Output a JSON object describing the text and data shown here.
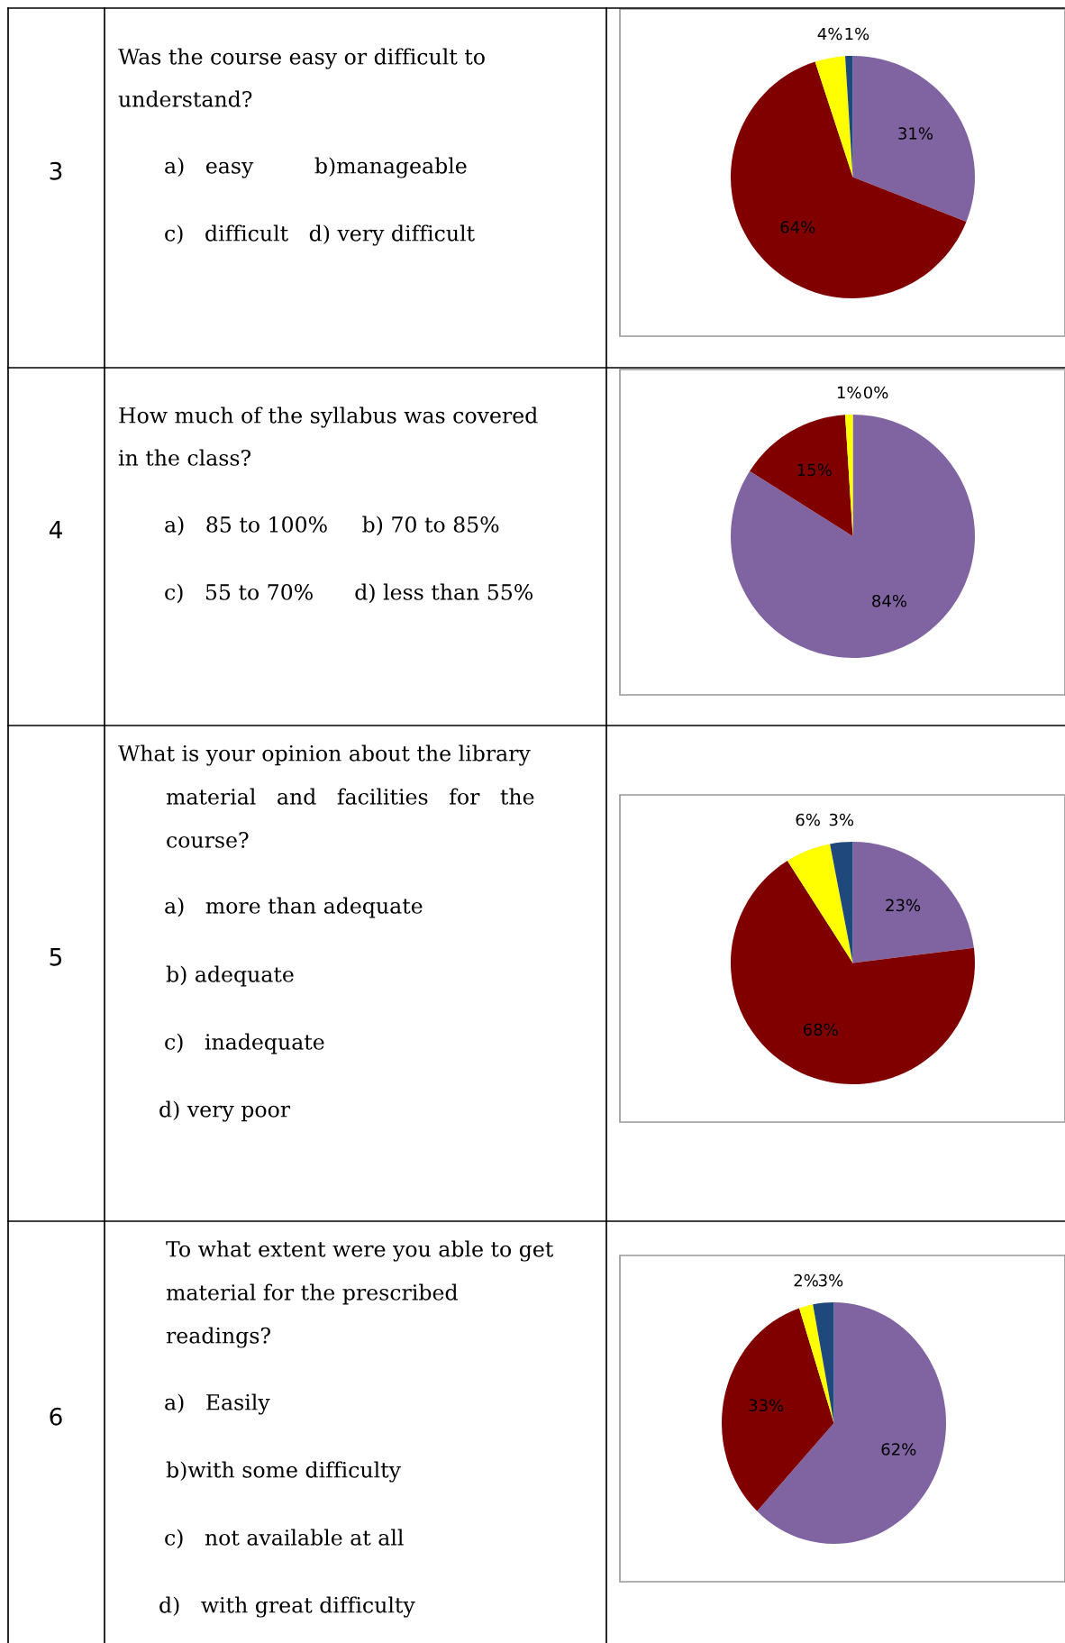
{
  "chart_data": [
    {
      "type": "other",
      "title": "3",
      "annotations": [
        "Was the course easy or difficult to",
        "understand?",
        "a)   easy         b)manageable",
        "c)   difficult   d) very difficult"
      ]
    },
    {
      "type": "pie",
      "categories": [
        null,
        null,
        null,
        null
      ],
      "values": [
        31,
        64,
        4,
        1
      ],
      "colors": [
        "#8064a2",
        "#800000",
        "#ffff00",
        "#1f497d"
      ],
      "value_labels": [
        "31%",
        "64%",
        "4%",
        "1%"
      ]
    },
    {
      "type": "other",
      "title": "4",
      "annotations": [
        "How much of the syllabus was covered",
        "in the class?",
        "a)   85 to 100%     b) 70 to 85%",
        "c)   55 to 70%      d) less than 55%"
      ]
    },
    {
      "type": "pie",
      "categories": [
        null,
        null,
        null,
        null
      ],
      "values": [
        84,
        15,
        1,
        0
      ],
      "colors": [
        "#8064a2",
        "#800000",
        "#ffff00",
        "#1f497d"
      ],
      "value_labels": [
        "84%",
        "15%",
        "1%",
        "0%"
      ]
    },
    {
      "type": "other",
      "title": "5",
      "annotations": [
        "What is your opinion about the library",
        "material   and   facilities   for   the",
        "course?",
        "a)   more than adequate",
        "b) adequate",
        "c)   inadequate",
        "d) very poor"
      ]
    },
    {
      "type": "pie",
      "categories": [
        null,
        null,
        null,
        null
      ],
      "values": [
        23,
        68,
        6,
        3
      ],
      "colors": [
        "#8064a2",
        "#800000",
        "#ffff00",
        "#1f497d"
      ],
      "value_labels": [
        "23%",
        "68%",
        "6%",
        "3%"
      ]
    },
    {
      "type": "other",
      "title": "6",
      "annotations": [
        "To what extent were you able to get",
        "material for the prescribed",
        "readings?",
        "a)   Easily",
        "b)with some difficulty",
        "c)   not available at all",
        "d)   with great difficulty"
      ]
    },
    {
      "type": "pie",
      "categories": [
        null,
        null,
        null,
        null
      ],
      "values": [
        62,
        33,
        2,
        3
      ],
      "colors": [
        "#8064a2",
        "#800000",
        "#ffff00",
        "#1f497d"
      ],
      "value_labels": [
        "62%",
        "33%",
        "2%",
        "3%"
      ]
    }
  ]
}
